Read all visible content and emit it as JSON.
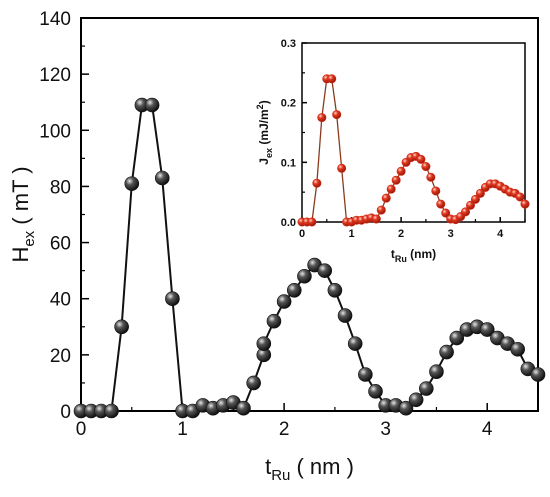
{
  "chart_data": [
    {
      "id": "main",
      "type": "line",
      "marker": "sphere",
      "colors": {
        "marker": "#111111",
        "line": "#111111",
        "highlight": "#e6e6e6"
      },
      "xlabel": {
        "main": "t",
        "sub": "Ru",
        "unit": " ( nm )"
      },
      "ylabel": {
        "main": "H",
        "sub": "ex",
        "unit": " ( mT )"
      },
      "xlim": [
        0,
        4.5
      ],
      "ylim": [
        0,
        140
      ],
      "xticks": [
        0,
        1,
        2,
        3,
        4
      ],
      "xtick_labels": [
        "0",
        "1",
        "2",
        "3",
        "4"
      ],
      "yticks": [
        0,
        20,
        40,
        60,
        80,
        100,
        120,
        140
      ],
      "ytick_labels": [
        "0",
        "20",
        "40",
        "60",
        "80",
        "100",
        "120",
        "140"
      ],
      "series": [
        {
          "x": [
            0.0,
            0.1,
            0.2,
            0.3,
            0.4,
            0.5,
            0.6,
            0.7,
            0.8,
            0.9,
            1.0,
            1.1,
            1.2,
            1.3,
            1.4,
            1.5,
            1.6,
            1.7,
            1.8,
            1.8,
            1.9,
            2.0,
            2.1,
            2.2,
            2.3,
            2.4,
            2.5,
            2.6,
            2.7,
            2.8,
            2.9,
            3.0,
            3.1,
            3.2,
            3.3,
            3.4,
            3.5,
            3.6,
            3.7,
            3.8,
            3.9,
            4.0,
            4.1,
            4.2,
            4.3,
            4.4,
            4.5
          ],
          "y": [
            0,
            0,
            0,
            0,
            30,
            81,
            109,
            109,
            83,
            40,
            0,
            0,
            2,
            1,
            2,
            3,
            1,
            10,
            20,
            24,
            32,
            39,
            43,
            48,
            52,
            50,
            43,
            34,
            24,
            13,
            7,
            2,
            2,
            1,
            4,
            8,
            14,
            21,
            26,
            29,
            30,
            29,
            26,
            24,
            22,
            15,
            13
          ]
        }
      ]
    },
    {
      "id": "inset",
      "type": "line",
      "marker": "sphere",
      "colors": {
        "marker": "#d42a16",
        "line": "#8b3a1e",
        "highlight": "#ffd9cc"
      },
      "xlabel": {
        "main": "t",
        "sub": "Ru",
        "unit": " (nm)"
      },
      "ylabel": {
        "main": "J",
        "sub": "ex",
        "unit": " (mJ/m",
        "sup": "2",
        "end": ")"
      },
      "xlim": [
        0,
        4.5
      ],
      "ylim": [
        0,
        0.3
      ],
      "xticks": [
        0,
        1,
        2,
        3,
        4
      ],
      "xtick_labels": [
        "0",
        "1",
        "2",
        "3",
        "4"
      ],
      "yticks": [
        0,
        0.1,
        0.2,
        0.3
      ],
      "ytick_labels": [
        "0.0",
        "0.1",
        "0.2",
        "0.3"
      ],
      "series": [
        {
          "x": [
            0.0,
            0.1,
            0.2,
            0.3,
            0.4,
            0.5,
            0.6,
            0.7,
            0.8,
            0.9,
            1.0,
            1.1,
            1.2,
            1.3,
            1.4,
            1.5,
            1.6,
            1.7,
            1.8,
            1.9,
            2.0,
            2.1,
            2.2,
            2.3,
            2.4,
            2.5,
            2.6,
            2.7,
            2.8,
            2.9,
            3.0,
            3.1,
            3.2,
            3.3,
            3.4,
            3.5,
            3.6,
            3.7,
            3.8,
            3.9,
            4.0,
            4.1,
            4.2,
            4.3,
            4.4,
            4.5
          ],
          "y": [
            0,
            0,
            0,
            0.065,
            0.175,
            0.24,
            0.24,
            0.18,
            0.09,
            0,
            0,
            0.003,
            0.003,
            0.005,
            0.007,
            0.005,
            0.02,
            0.04,
            0.055,
            0.07,
            0.085,
            0.1,
            0.108,
            0.11,
            0.105,
            0.093,
            0.075,
            0.052,
            0.03,
            0.015,
            0.005,
            0.004,
            0.009,
            0.017,
            0.028,
            0.038,
            0.048,
            0.058,
            0.064,
            0.064,
            0.06,
            0.055,
            0.05,
            0.048,
            0.042,
            0.03
          ]
        }
      ]
    }
  ]
}
